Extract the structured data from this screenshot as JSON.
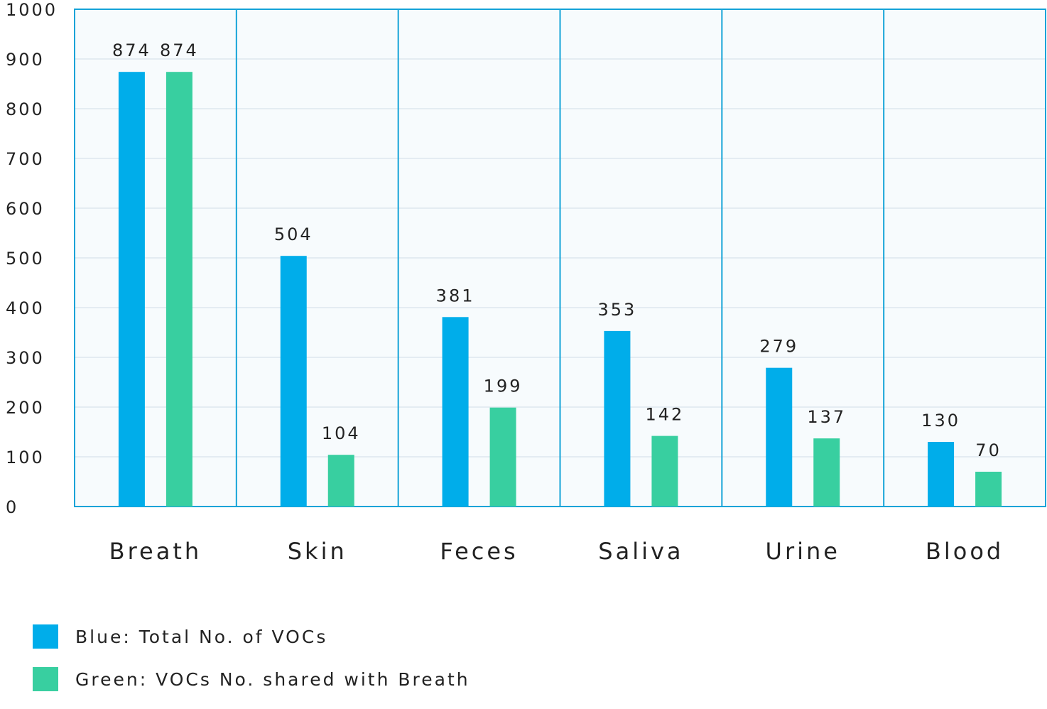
{
  "chart_data": {
    "type": "bar",
    "categories": [
      "Breath",
      "Skin",
      "Feces",
      "Saliva",
      "Urine",
      "Blood"
    ],
    "series": [
      {
        "name": "Blue: Total No. of VOCs",
        "color": "#00adea",
        "values": [
          874,
          504,
          381,
          353,
          279,
          130
        ]
      },
      {
        "name": "Green: VOCs No. shared with Breath",
        "color": "#38cfa0",
        "values": [
          874,
          104,
          199,
          142,
          137,
          70
        ]
      }
    ],
    "yticks": [
      "0",
      "100",
      "200",
      "300",
      "400",
      "500",
      "600",
      "700",
      "800",
      "900",
      "1000"
    ],
    "ylim": [
      0,
      1000
    ],
    "grid": true,
    "legend_position": "bottom-left",
    "plot_background": "#f7fbfd",
    "border_color": "#15a3d8",
    "grid_color": "#dde8ee"
  }
}
